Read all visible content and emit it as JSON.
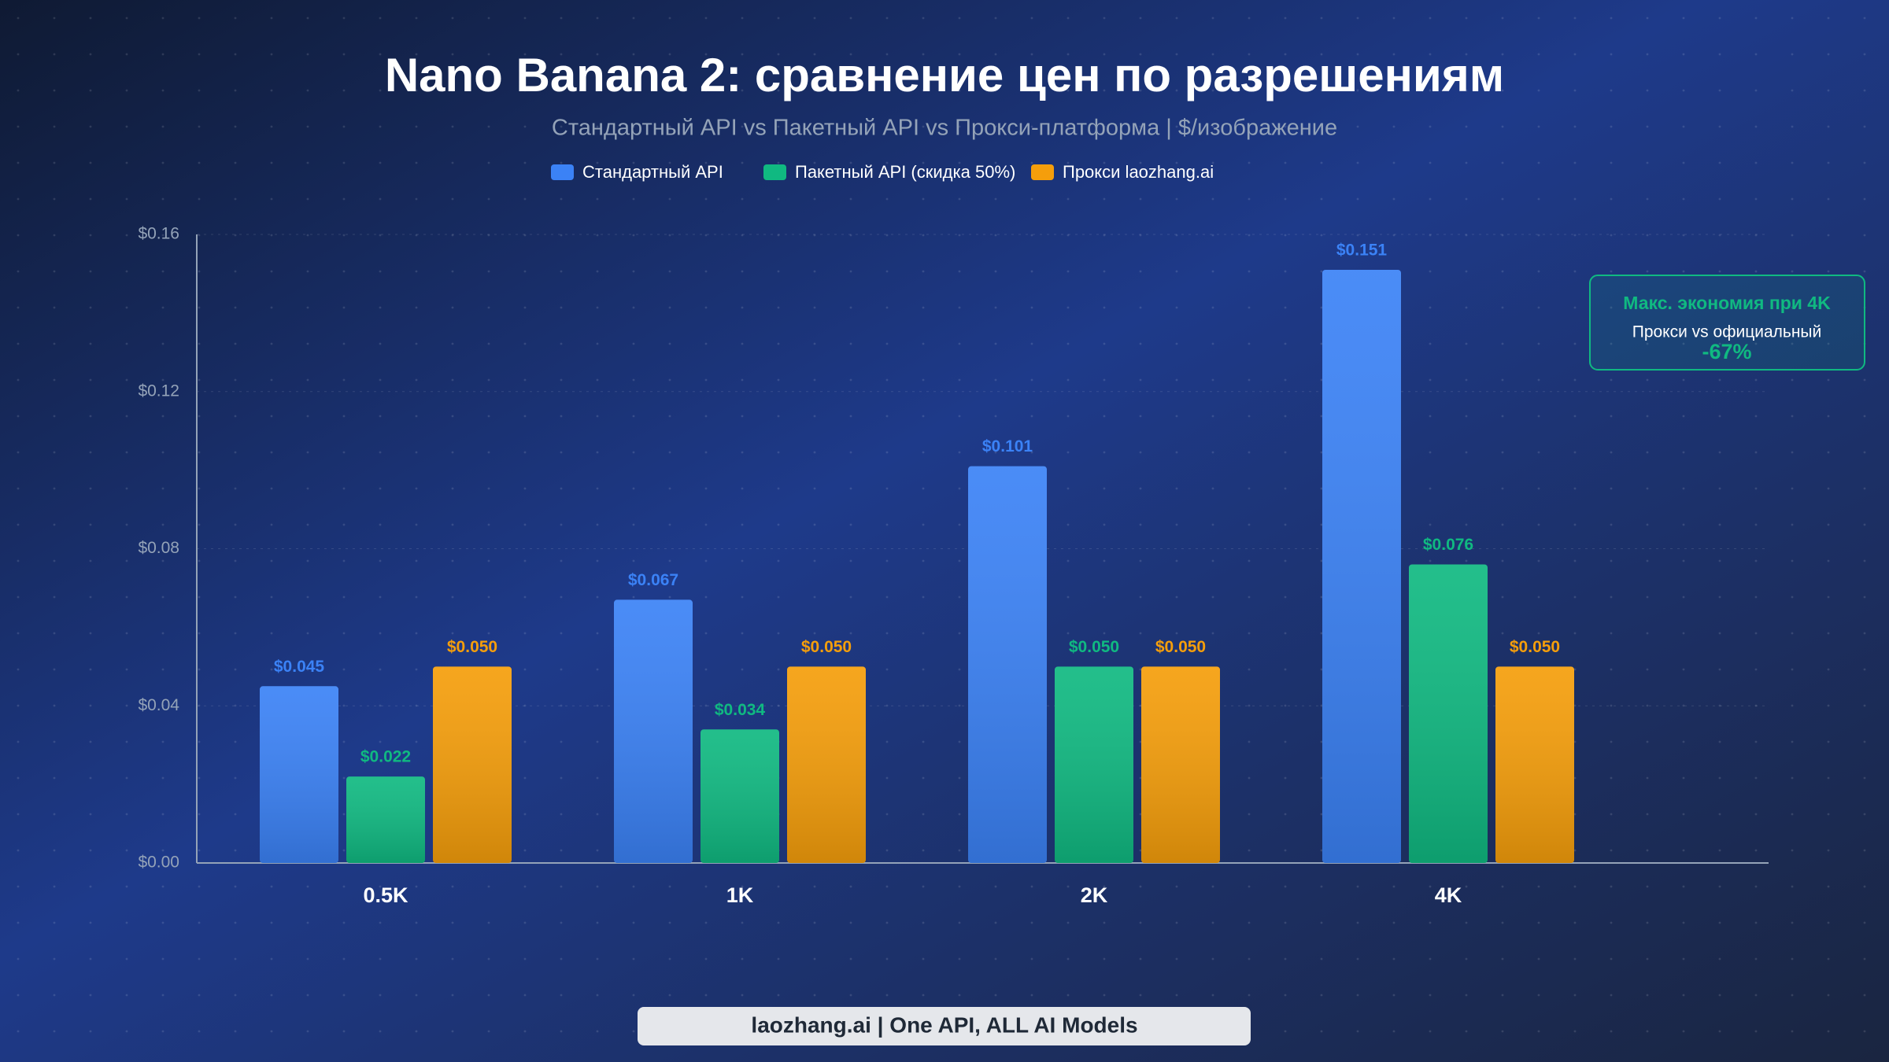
{
  "chart_data": {
    "type": "bar",
    "title": "Nano Banana 2: сравнение цен по разрешениям",
    "subtitle": "Стандартный API vs Пакетный API vs Прокси-платформа | $/изображение",
    "categories": [
      "0.5K",
      "1K",
      "2K",
      "4K"
    ],
    "series": [
      {
        "name": "Стандартный API",
        "color": "#3b82f6",
        "values": [
          0.045,
          0.067,
          0.101,
          0.151
        ],
        "value_labels": [
          "$0.045",
          "$0.067",
          "$0.101",
          "$0.151"
        ]
      },
      {
        "name": "Пакетный API (скидка 50%)",
        "color": "#10b981",
        "values": [
          0.022,
          0.034,
          0.05,
          0.076
        ],
        "value_labels": [
          "$0.022",
          "$0.034",
          "$0.050",
          "$0.076"
        ]
      },
      {
        "name": "Прокси laozhang.ai",
        "color": "#f59e0b",
        "values": [
          0.05,
          0.05,
          0.05,
          0.05
        ],
        "value_labels": [
          "$0.050",
          "$0.050",
          "$0.050",
          "$0.050"
        ]
      }
    ],
    "ylim": [
      0,
      0.16
    ],
    "yticks": [
      {
        "value": 0,
        "label": "$0.00"
      },
      {
        "value": 0.04,
        "label": "$0.04"
      },
      {
        "value": 0.08,
        "label": "$0.08"
      },
      {
        "value": 0.12,
        "label": "$0.12"
      },
      {
        "value": 0.16,
        "label": "$0.16"
      }
    ],
    "grid": true,
    "annotation": {
      "title": "Макс. экономия при 4K",
      "text": "Прокси vs официальный",
      "value": "-67%"
    },
    "footer": "laozhang.ai | One API, ALL AI Models"
  }
}
